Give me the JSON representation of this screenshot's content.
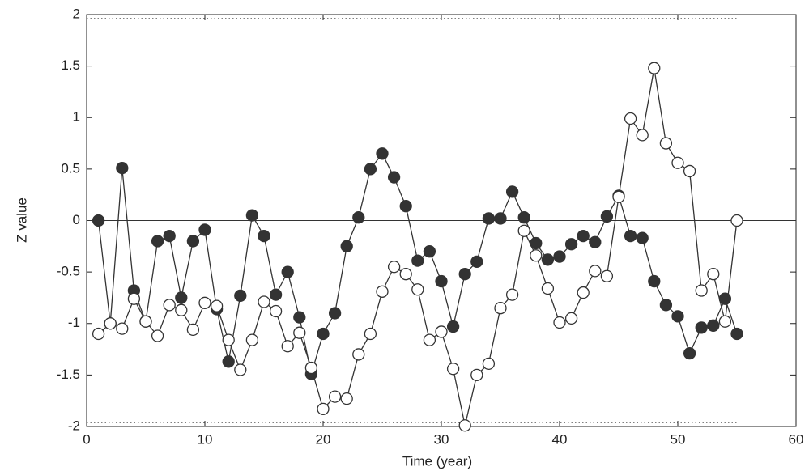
{
  "chart_data": {
    "type": "line",
    "x_label": "Time (year)",
    "y_label": "Z value",
    "x": [
      1,
      2,
      3,
      4,
      5,
      6,
      7,
      8,
      9,
      10,
      11,
      12,
      13,
      14,
      15,
      16,
      17,
      18,
      19,
      20,
      21,
      22,
      23,
      24,
      25,
      26,
      27,
      28,
      29,
      30,
      31,
      32,
      33,
      34,
      35,
      36,
      37,
      38,
      39,
      40,
      41,
      42,
      43,
      44,
      45,
      46,
      47,
      48,
      49,
      50,
      51,
      52,
      53,
      54,
      55
    ],
    "series": [
      {
        "color": "#333333",
        "marker": "filled",
        "values": [
          0,
          -1.0,
          0.51,
          -0.68,
          -0.98,
          -0.2,
          -0.15,
          -0.75,
          -0.2,
          -0.09,
          -0.86,
          -1.37,
          -0.73,
          0.05,
          -0.15,
          -0.72,
          -0.5,
          -0.94,
          -1.49,
          -1.1,
          -0.9,
          -0.25,
          0.03,
          0.5,
          0.65,
          0.42,
          0.14,
          -0.39,
          -0.3,
          -0.59,
          -1.03,
          -0.52,
          -0.4,
          0.02,
          0.02,
          0.28,
          0.03,
          -0.22,
          -0.38,
          -0.35,
          -0.23,
          -0.15,
          -0.21,
          0.04,
          0.24,
          -0.15,
          -0.17,
          -0.59,
          -0.82,
          -0.93,
          -1.29,
          -1.04,
          -1.02,
          -0.76,
          -1.1
        ]
      },
      {
        "color": "#333333",
        "marker": "open",
        "values": [
          -1.1,
          -1.0,
          -1.05,
          -0.76,
          -0.98,
          -1.12,
          -0.82,
          -0.87,
          -1.06,
          -0.8,
          -0.83,
          -1.16,
          -1.45,
          -1.16,
          -0.79,
          -0.88,
          -1.22,
          -1.09,
          -1.43,
          -1.83,
          -1.71,
          -1.73,
          -1.3,
          -1.1,
          -0.69,
          -0.45,
          -0.52,
          -0.67,
          -1.16,
          -1.08,
          -1.44,
          -1.99,
          -1.5,
          -1.39,
          -0.85,
          -0.72,
          -0.1,
          -0.34,
          -0.66,
          -0.99,
          -0.95,
          -0.7,
          -0.49,
          -0.54,
          0.23,
          0.99,
          0.83,
          1.48,
          0.75,
          0.56,
          0.48,
          -0.68,
          -0.52,
          -0.98,
          0
        ]
      }
    ],
    "reference_lines": [
      0,
      1.96,
      -1.96
    ],
    "xlim": [
      0,
      60
    ],
    "xticks": [
      0,
      10,
      20,
      30,
      40,
      50,
      60
    ],
    "ylim": [
      -2,
      2
    ],
    "yticks": [
      -2,
      -1.5,
      -1,
      -0.5,
      0,
      0.5,
      1,
      1.5,
      2
    ]
  }
}
